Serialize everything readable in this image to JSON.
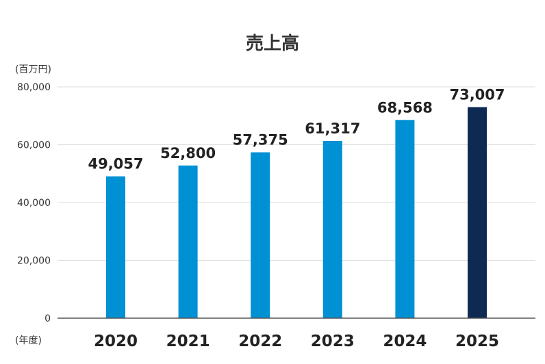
{
  "chart_data": {
    "type": "bar",
    "title": "売上高",
    "ylabel": "(百万円)",
    "xlabel": "(年度)",
    "categories": [
      "2020",
      "2021",
      "2022",
      "2023",
      "2024",
      "2025"
    ],
    "values": [
      49057,
      52800,
      57375,
      61317,
      68568,
      73007
    ],
    "value_labels": [
      "49,057",
      "52,800",
      "57,375",
      "61,317",
      "68,568",
      "73,007"
    ],
    "ylim": [
      0,
      80000
    ],
    "yticks": [
      0,
      20000,
      40000,
      60000,
      80000
    ],
    "ytick_labels": [
      "0",
      "20,000",
      "40,000",
      "60,000",
      "80,000"
    ],
    "grid": true,
    "colors": {
      "bar": "#0090d4",
      "highlight": "#0f2a52",
      "highlight_index": 5,
      "grid": "#dddddd",
      "axis": "#555555"
    }
  }
}
